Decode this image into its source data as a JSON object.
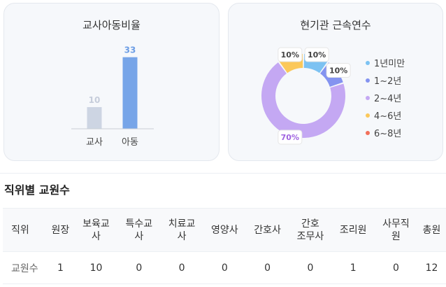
{
  "ratio_card": {
    "title": "교사아동비율"
  },
  "tenure_card": {
    "title": "현기관 근속연수"
  },
  "section": {
    "title": "직위별 교원수"
  },
  "table": {
    "header_row_label": "직위",
    "columns": [
      "원장",
      "보육교\n사",
      "특수교\n사",
      "치료교\n사",
      "영양사",
      "간호사",
      "간호\n조무사",
      "조리원",
      "사무직\n원",
      "총원"
    ],
    "rows": [
      {
        "label": "교원수",
        "values": [
          "1",
          "10",
          "0",
          "0",
          "0",
          "0",
          "0",
          "1",
          "0",
          "12"
        ]
      }
    ]
  },
  "chart_data": [
    {
      "type": "bar",
      "title": "교사아동비율",
      "categories": [
        "교사",
        "아동"
      ],
      "values": [
        10,
        33
      ],
      "colors": [
        "#cdd5e3",
        "#77a5e8"
      ],
      "label_colors": [
        "#c6cddb",
        "#6d9ee5"
      ],
      "ylim": [
        0,
        40
      ],
      "grid": false
    },
    {
      "type": "pie",
      "title": "현기관 근속연수",
      "donut": true,
      "legend_position": "right",
      "series": [
        {
          "name": "1년미만",
          "value": 10,
          "label": "10%",
          "color": "#7cc2f2"
        },
        {
          "name": "1~2년",
          "value": 10,
          "label": "10%",
          "color": "#8493f0"
        },
        {
          "name": "2~4년",
          "value": 70,
          "label": "70%",
          "color": "#c4a8f3"
        },
        {
          "name": "4~6년",
          "value": 10,
          "label": "10%",
          "color": "#fbc85a"
        },
        {
          "name": "6~8년",
          "value": 0,
          "label": "",
          "color": "#f2705a"
        }
      ],
      "label_text_color": "#444444",
      "big_label_color": "#a064e0"
    }
  ]
}
